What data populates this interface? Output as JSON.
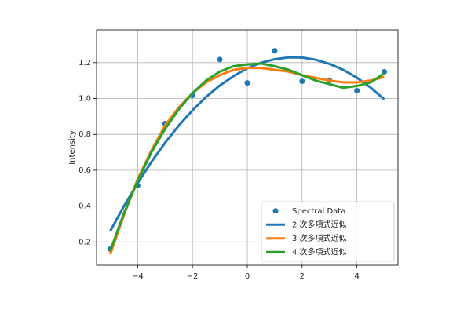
{
  "chart_data": {
    "type": "line",
    "ylabel": "Intensity",
    "xlim": [
      -5.5,
      5.5
    ],
    "ylim": [
      0.07,
      1.383
    ],
    "xticks": [
      {
        "value": -4,
        "label": "−4"
      },
      {
        "value": -2,
        "label": "−2"
      },
      0,
      2,
      4
    ],
    "yticks": [
      0.2,
      0.4,
      0.6,
      0.8,
      {
        "value": 1,
        "label": "1.0"
      },
      1.2
    ],
    "grid": true,
    "legend": "lower right",
    "series": [
      {
        "name": "Spectral Data",
        "type": "scatter",
        "color": "#1f77b4",
        "x": [
          -5,
          -4,
          -3,
          -2,
          -1,
          0,
          1,
          2,
          3,
          4,
          5
        ],
        "values": [
          0.16,
          0.515,
          0.86,
          1.017,
          1.217,
          1.087,
          1.266,
          1.096,
          1.1,
          1.044,
          1.149
        ]
      },
      {
        "name": "2 次多項式近似",
        "type": "line",
        "color": "#1f77b4",
        "x": [
          -5,
          -4.5,
          -4,
          -3.5,
          -3,
          -2.5,
          -2,
          -1.5,
          -1,
          -0.5,
          0,
          0.5,
          1,
          1.5,
          2,
          2.5,
          3,
          3.5,
          4,
          4.5,
          5
        ],
        "values": [
          0.26,
          0.4,
          0.528,
          0.646,
          0.753,
          0.849,
          0.934,
          1.009,
          1.073,
          1.125,
          1.168,
          1.199,
          1.219,
          1.229,
          1.228,
          1.216,
          1.193,
          1.16,
          1.116,
          1.061,
          0.995
        ]
      },
      {
        "name": "3 次多項式近似",
        "type": "line",
        "color": "#ff7f0e",
        "x": [
          -5,
          -4.5,
          -4,
          -3.5,
          -3,
          -2.5,
          -2,
          -1.5,
          -1,
          -0.5,
          0,
          0.5,
          1,
          1.5,
          2,
          2.5,
          3,
          3.5,
          4,
          4.5,
          5
        ],
        "values": [
          0.13,
          0.35,
          0.55,
          0.71,
          0.85,
          0.95,
          1.03,
          1.09,
          1.13,
          1.16,
          1.17,
          1.17,
          1.16,
          1.15,
          1.13,
          1.115,
          1.1,
          1.09,
          1.09,
          1.1,
          1.12
        ]
      },
      {
        "name": "4 次多項式近似",
        "type": "line",
        "color": "#2ca02c",
        "x": [
          -5,
          -4.5,
          -4,
          -3.5,
          -3,
          -2.5,
          -2,
          -1.5,
          -1,
          -0.5,
          0,
          0.5,
          1,
          1.5,
          2,
          2.5,
          3,
          3.5,
          4,
          4.5,
          5
        ],
        "values": [
          0.15,
          0.36,
          0.54,
          0.7,
          0.83,
          0.94,
          1.03,
          1.1,
          1.15,
          1.18,
          1.19,
          1.195,
          1.18,
          1.16,
          1.13,
          1.1,
          1.08,
          1.06,
          1.07,
          1.09,
          1.14
        ]
      }
    ]
  }
}
